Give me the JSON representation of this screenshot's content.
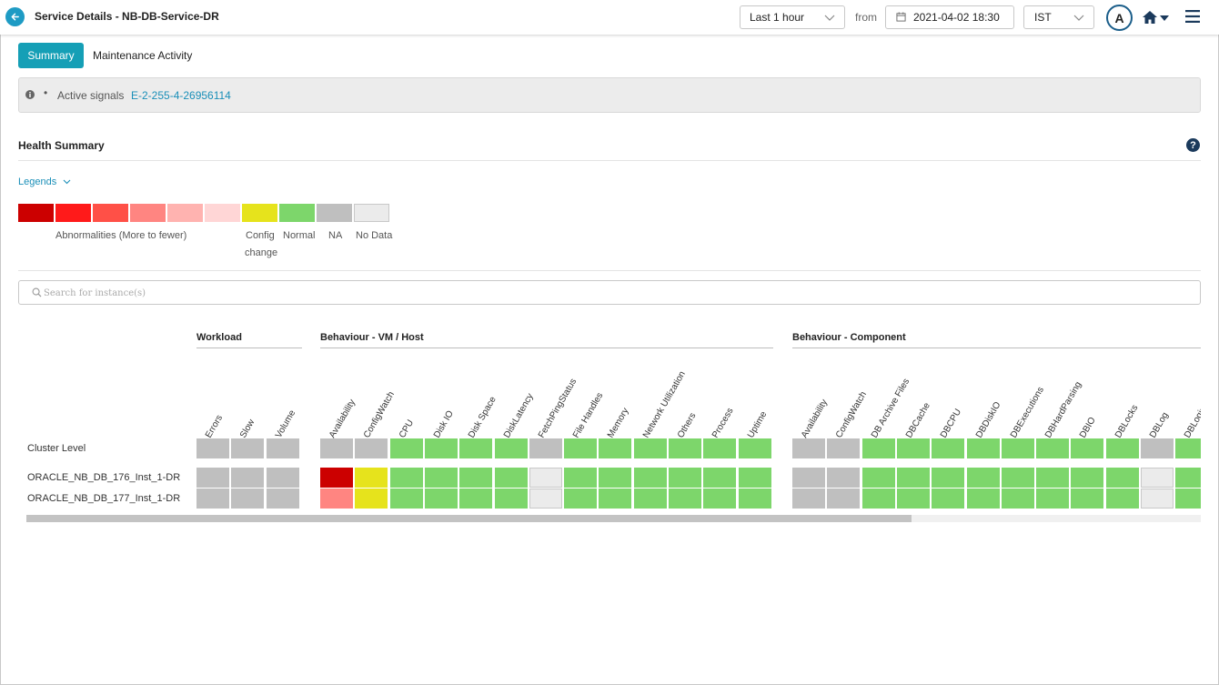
{
  "header": {
    "title": "Service Details - NB-DB-Service-DR",
    "time_range": "Last 1 hour",
    "from_label": "from",
    "date": "2021-04-02 18:30",
    "timezone": "IST",
    "avatar_initial": "A"
  },
  "tabs": [
    {
      "label": "Summary",
      "active": true
    },
    {
      "label": "Maintenance Activity",
      "active": false
    }
  ],
  "signals": {
    "label": "Active signals",
    "link": "E-2-255-4-26956114"
  },
  "health": {
    "title": "Health Summary",
    "legends_toggle": "Legends",
    "legend_swatches": [
      "#cc0000",
      "#ff1a1a",
      "#ff5047",
      "#ff8581",
      "#ffb3b0",
      "#ffd6d6",
      "#e6e31c",
      "#7dd66b",
      "#bfbfbf",
      "#ebebeb"
    ],
    "legend_labels": {
      "abnormal": "Abnormalities (More to fewer)",
      "config_line1": "Config",
      "config_line2": "change",
      "normal": "Normal",
      "na": "NA",
      "nodata": "No Data"
    }
  },
  "search": {
    "placeholder": "Search for instance(s)"
  },
  "grid": {
    "groups": [
      {
        "title": "Workload",
        "columns": [
          "Errors",
          "Slow",
          "Volume"
        ]
      },
      {
        "title": "Behaviour - VM / Host",
        "columns": [
          "Availability",
          "ConfigWatch",
          "CPU",
          "Disk IO",
          "Disk Space",
          "DiskLatency",
          "FetchPingStatus",
          "File Handles",
          "Memory",
          "Network Utilization",
          "Others",
          "Process",
          "Uptime"
        ]
      },
      {
        "title": "Behaviour - Component",
        "columns": [
          "Availability",
          "ConfigWatch",
          "DB Archive Files",
          "DBCache",
          "DBCPU",
          "DBDiskIO",
          "DBExecutions",
          "DBHardParsing",
          "DBIO",
          "DBLocks",
          "DBLog",
          "DBLogin..."
        ]
      }
    ],
    "status_colors": {
      "na": "#bfbfbf",
      "normal": "#7dd66b",
      "nodata": "#ebebeb",
      "critical": "#cc0000",
      "low": "#ff8581",
      "config": "#e6e31c"
    },
    "rows": [
      {
        "label": "Cluster Level",
        "cells": [
          [
            "na",
            "na",
            "na"
          ],
          [
            "na",
            "na",
            "normal",
            "normal",
            "normal",
            "normal",
            "na",
            "normal",
            "normal",
            "normal",
            "normal",
            "normal",
            "normal"
          ],
          [
            "na",
            "na",
            "normal",
            "normal",
            "normal",
            "normal",
            "normal",
            "normal",
            "normal",
            "normal",
            "na",
            "normal"
          ]
        ]
      },
      {
        "label": "ORACLE_NB_DB_176_Inst_1-DR",
        "cells": [
          [
            "na",
            "na",
            "na"
          ],
          [
            "critical",
            "config",
            "normal",
            "normal",
            "normal",
            "normal",
            "nodata",
            "normal",
            "normal",
            "normal",
            "normal",
            "normal",
            "normal"
          ],
          [
            "na",
            "na",
            "normal",
            "normal",
            "normal",
            "normal",
            "normal",
            "normal",
            "normal",
            "normal",
            "nodata",
            "normal"
          ]
        ]
      },
      {
        "label": "ORACLE_NB_DB_177_Inst_1-DR",
        "cells": [
          [
            "na",
            "na",
            "na"
          ],
          [
            "low",
            "config",
            "normal",
            "normal",
            "normal",
            "normal",
            "nodata",
            "normal",
            "normal",
            "normal",
            "normal",
            "normal",
            "normal"
          ],
          [
            "na",
            "na",
            "normal",
            "normal",
            "normal",
            "normal",
            "normal",
            "normal",
            "normal",
            "normal",
            "nodata",
            "normal"
          ]
        ]
      }
    ]
  }
}
